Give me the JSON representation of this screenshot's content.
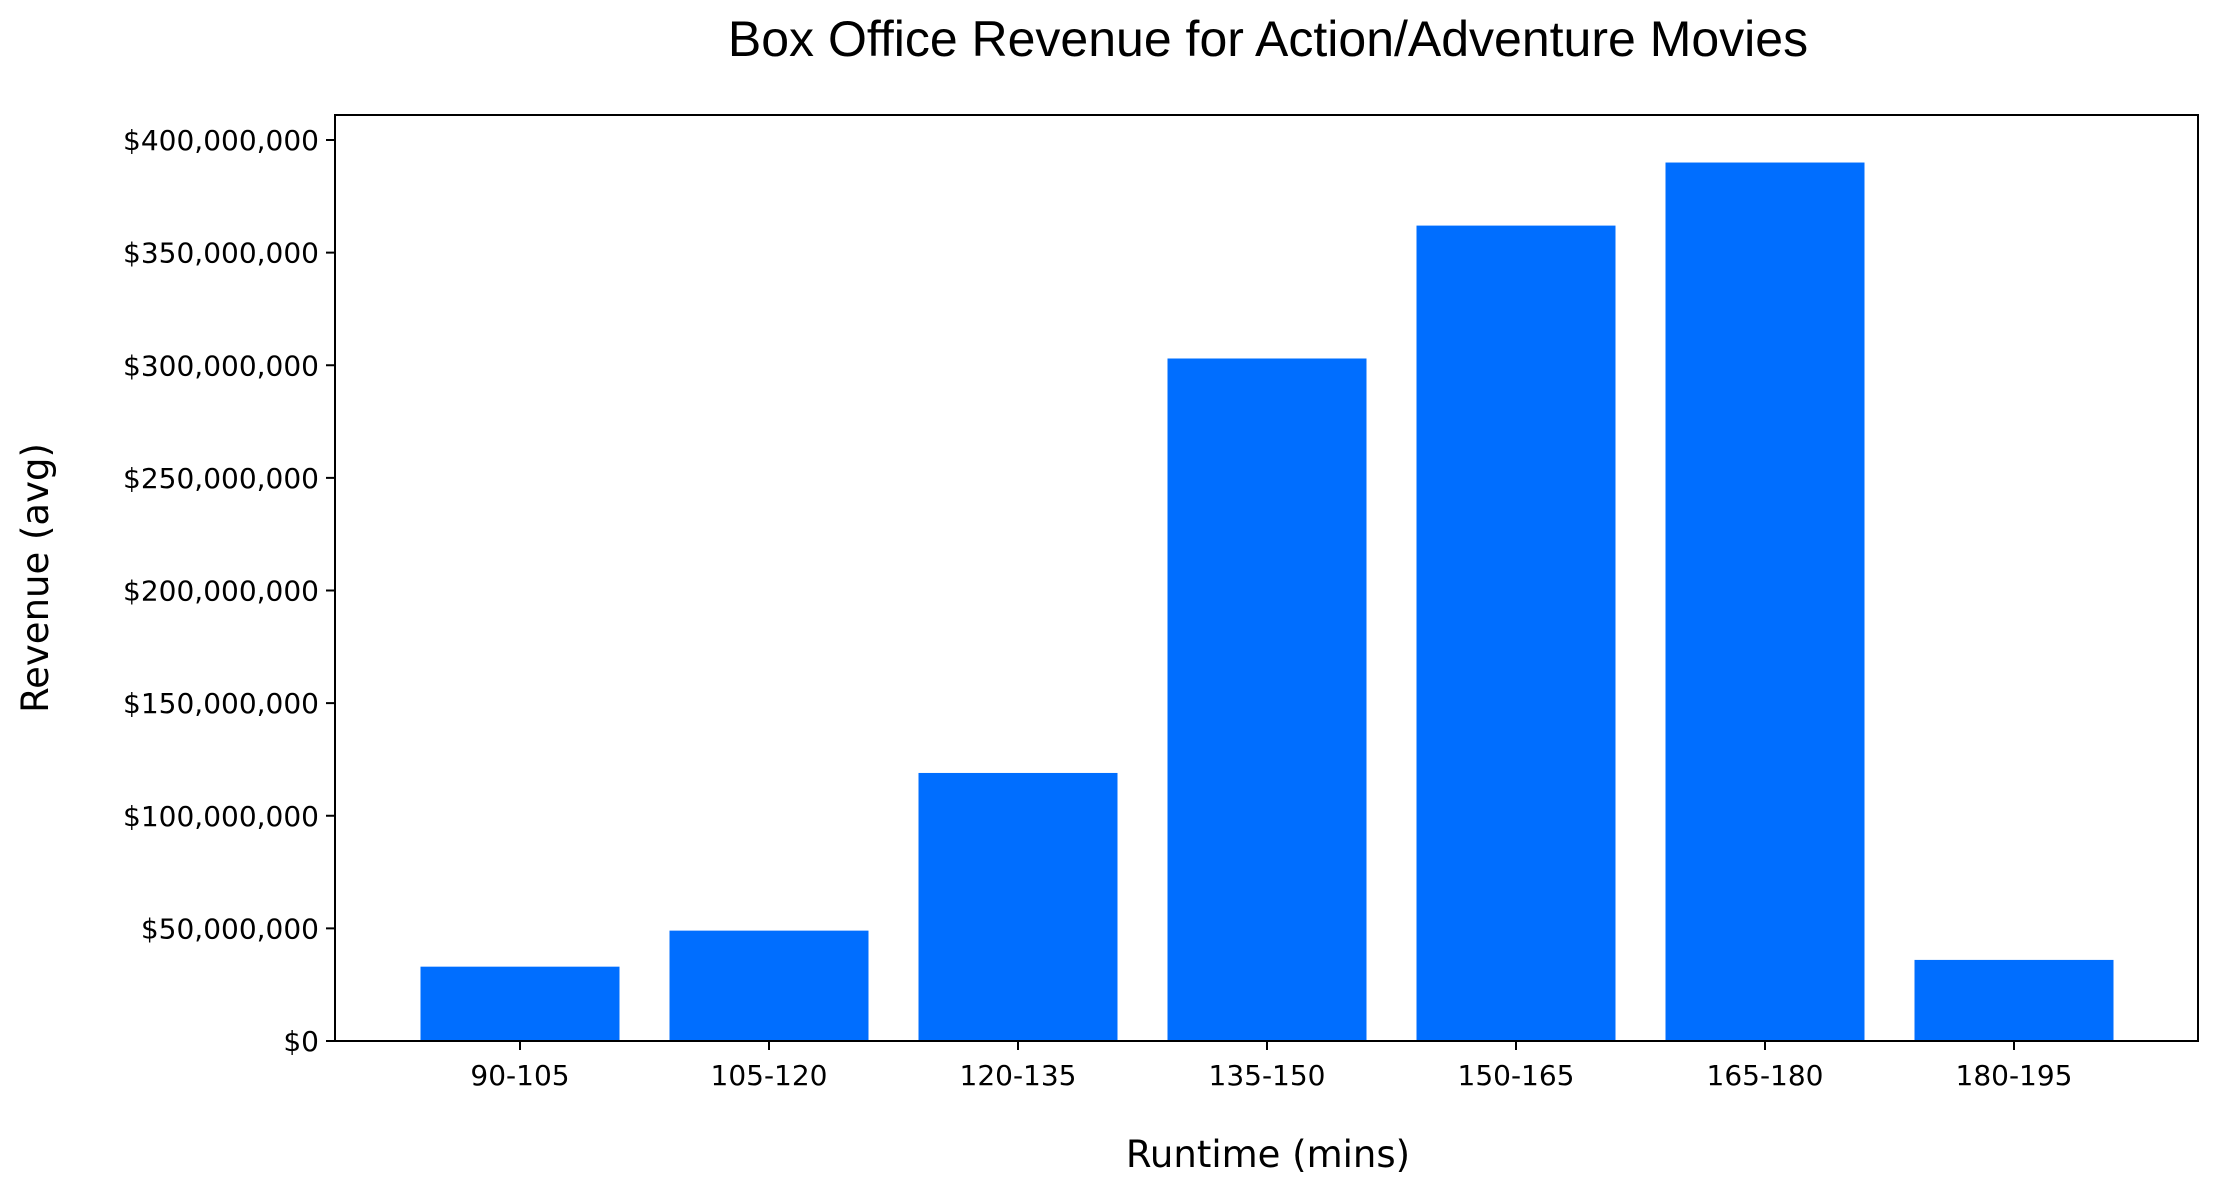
{
  "chart_data": {
    "type": "bar",
    "title": "Box Office Revenue for Action/Adventure Movies",
    "xlabel": "Runtime (mins)",
    "ylabel": "Revenue (avg)",
    "categories": [
      "90-105",
      "105-120",
      "120-135",
      "135-150",
      "150-165",
      "165-180",
      "180-195"
    ],
    "values": [
      33000000,
      49000000,
      119000000,
      303000000,
      362000000,
      390000000,
      36000000
    ],
    "ylim": [
      0,
      410000000
    ],
    "yticks": [
      0,
      50000000,
      100000000,
      150000000,
      200000000,
      250000000,
      300000000,
      350000000,
      400000000
    ],
    "ytick_labels": [
      "$0",
      "$50,000,000",
      "$100,000,000",
      "$150,000,000",
      "$200,000,000",
      "$250,000,000",
      "$300,000,000",
      "$350,000,000",
      "$400,000,000"
    ],
    "bar_color": "#006eff",
    "grid": false,
    "legend": "none"
  }
}
